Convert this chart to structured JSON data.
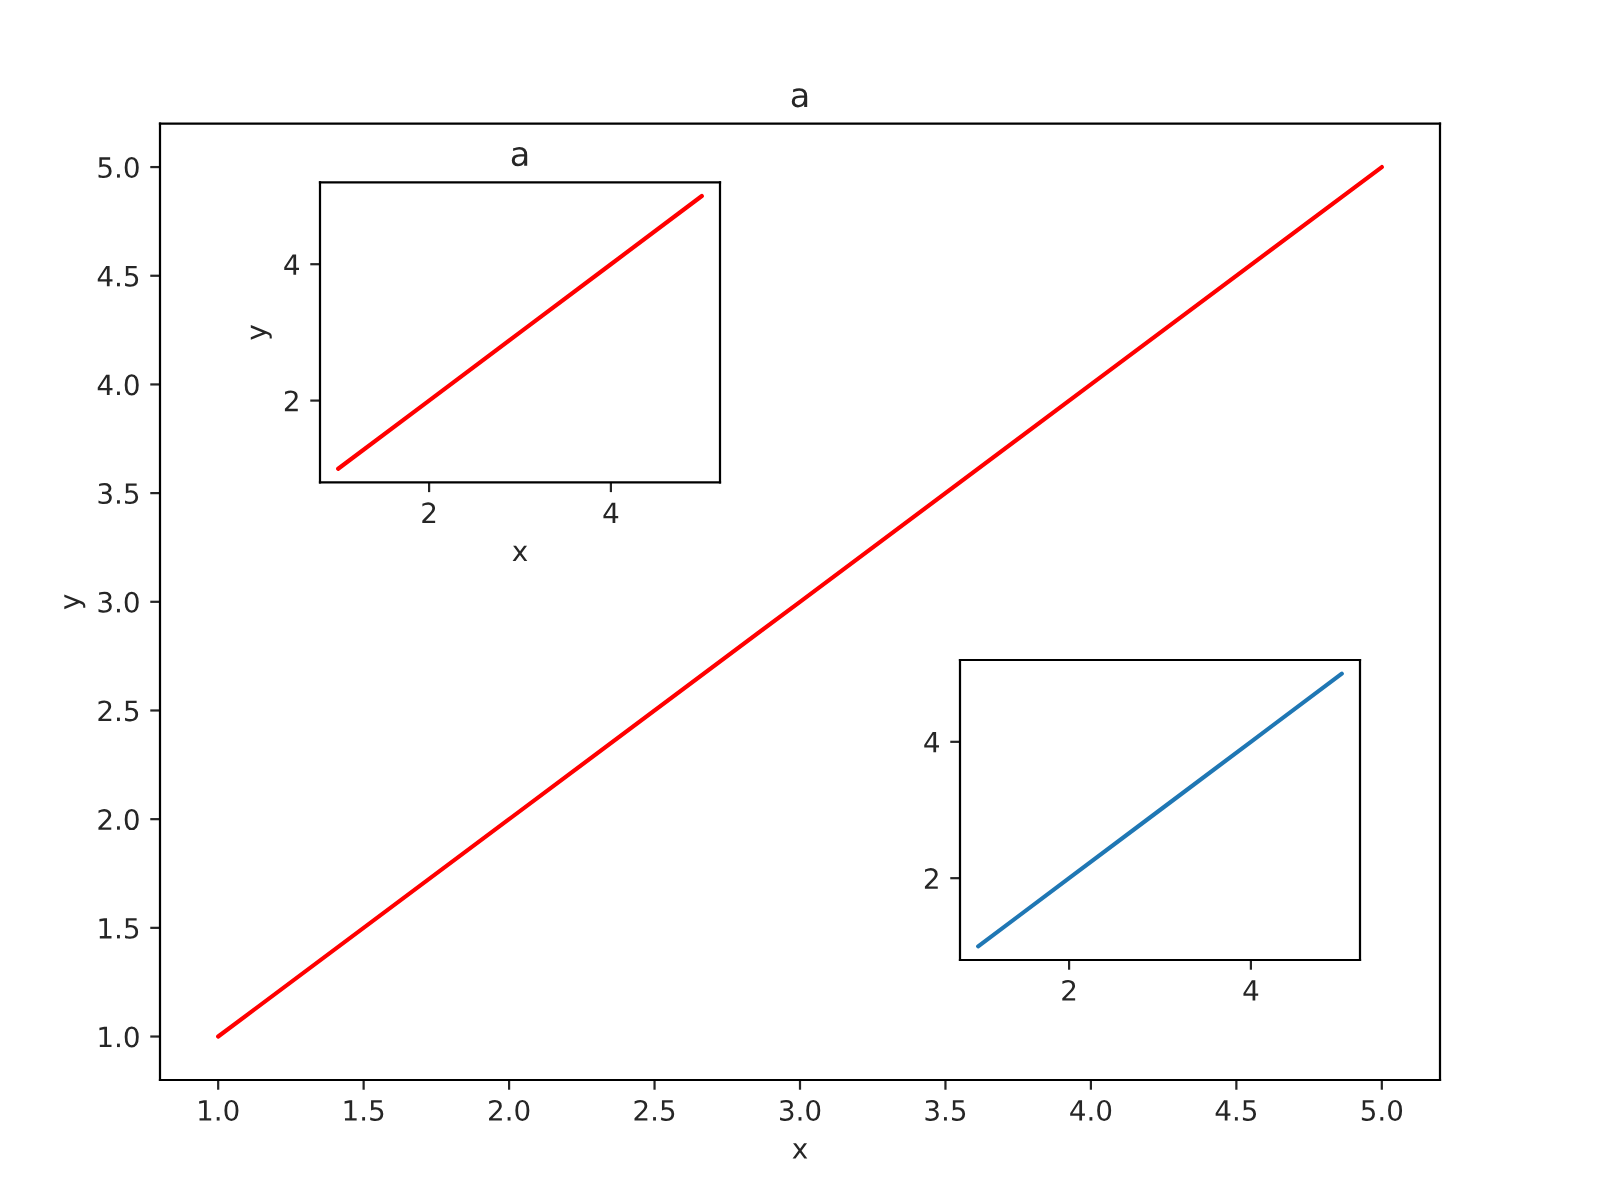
{
  "chart_data": [
    {
      "type": "line",
      "title": "a",
      "xlabel": "x",
      "ylabel": "y",
      "x": [
        1,
        2,
        3,
        4,
        5
      ],
      "series": [
        {
          "color": "#ff0000",
          "values": [
            1,
            2,
            3,
            4,
            5
          ]
        }
      ],
      "xlim": [
        0.8,
        5.2
      ],
      "ylim": [
        0.8,
        5.2
      ],
      "xticks": [
        {
          "value": 1,
          "label": "1.0"
        },
        {
          "value": 1.5,
          "label": "1.5"
        },
        {
          "value": 2,
          "label": "2.0"
        },
        {
          "value": 2.5,
          "label": "2.5"
        },
        {
          "value": 3,
          "label": "3.0"
        },
        {
          "value": 3.5,
          "label": "3.5"
        },
        {
          "value": 4,
          "label": "4.0"
        },
        {
          "value": 4.5,
          "label": "4.5"
        },
        {
          "value": 5,
          "label": "5.0"
        }
      ],
      "yticks": [
        {
          "value": 1,
          "label": "1.0"
        },
        {
          "value": 1.5,
          "label": "1.5"
        },
        {
          "value": 2,
          "label": "2.0"
        },
        {
          "value": 2.5,
          "label": "2.5"
        },
        {
          "value": 3,
          "label": "3.0"
        },
        {
          "value": 3.5,
          "label": "3.5"
        },
        {
          "value": 4,
          "label": "4.0"
        },
        {
          "value": 4.5,
          "label": "4.5"
        },
        {
          "value": 5,
          "label": "5.0"
        }
      ],
      "grid": false,
      "legend": false
    },
    {
      "type": "line",
      "title": "a",
      "xlabel": "x",
      "ylabel": "y",
      "x": [
        1,
        2,
        3,
        4,
        5
      ],
      "series": [
        {
          "color": "#ff0000",
          "values": [
            1,
            2,
            3,
            4,
            5
          ]
        }
      ],
      "xlim": [
        0.8,
        5.2
      ],
      "ylim": [
        0.8,
        5.2
      ],
      "xticks": [
        2,
        4
      ],
      "yticks": [
        2,
        4
      ],
      "grid": false,
      "legend": false
    },
    {
      "type": "line",
      "x": [
        1,
        2,
        3,
        4,
        5
      ],
      "series": [
        {
          "color": "#1f77b4",
          "values": [
            1,
            2,
            3,
            4,
            5
          ]
        }
      ],
      "xlim": [
        0.8,
        5.2
      ],
      "ylim": [
        0.8,
        5.2
      ],
      "xticks": [
        2,
        4
      ],
      "yticks": [
        2,
        4
      ],
      "grid": false,
      "legend": false
    }
  ]
}
